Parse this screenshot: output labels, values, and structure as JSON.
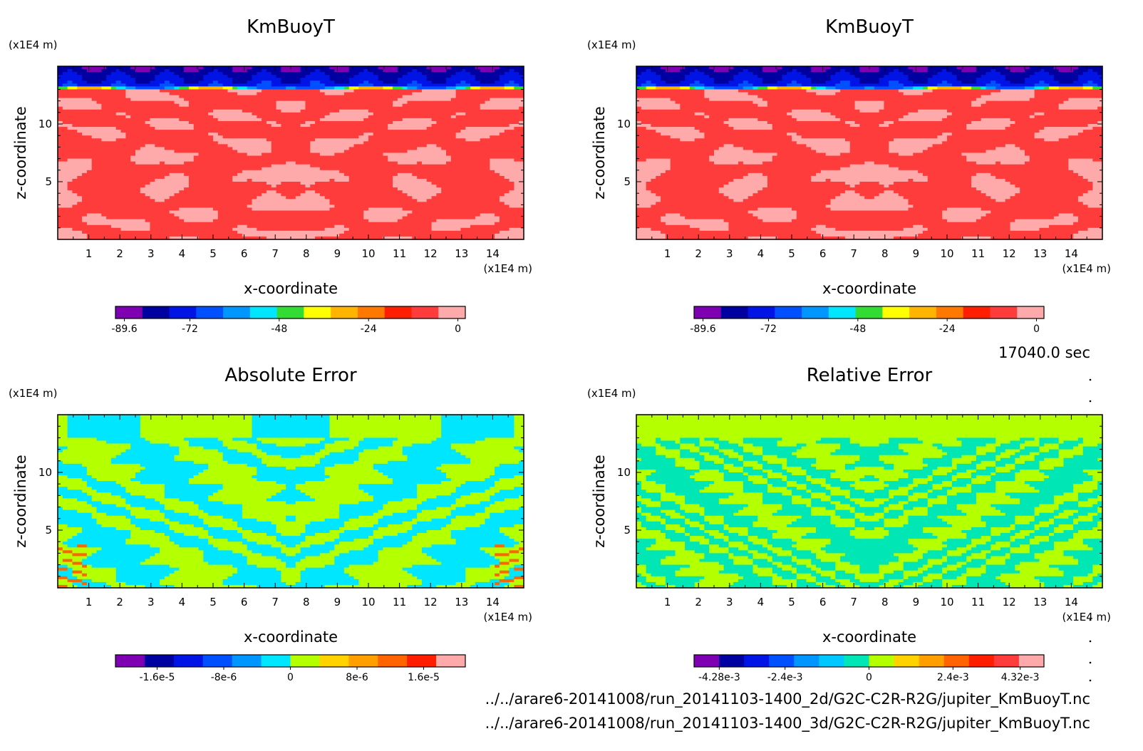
{
  "time_label": "17040.0 sec",
  "file_paths": [
    "../../arare6-20141008/run_20141103-1400_2d/G2C-C2R-R2G/jupiter_KmBuoyT.nc",
    "../../arare6-20141008/run_20141103-1400_3d/G2C-C2R-R2G/jupiter_KmBuoyT.nc"
  ],
  "chart_data": [
    {
      "type": "heatmap",
      "title": "KmBuoyT",
      "xlabel": "x-coordinate",
      "ylabel": "z-coordinate",
      "x_unit": "(x1E4 m)",
      "y_unit": "(x1E4 m)",
      "xlim": [
        0,
        15
      ],
      "ylim": [
        0,
        15
      ],
      "x_ticks": [
        "1",
        "2",
        "3",
        "4",
        "5",
        "6",
        "7",
        "8",
        "9",
        "10",
        "11",
        "12",
        "13",
        "14"
      ],
      "y_ticks": [
        "5",
        "10"
      ],
      "colorbar": {
        "colors": [
          "#7f00b2",
          "#0000a0",
          "#0014e6",
          "#0050ff",
          "#0096ff",
          "#00e6ff",
          "#32dc32",
          "#ffff00",
          "#ffb400",
          "#ff7800",
          "#ff1e00",
          "#ff3c3c",
          "#ffaaaa"
        ],
        "tick_labels": [
          "-89.6",
          "-72",
          "-48",
          "-24",
          "0"
        ],
        "tick_values": [
          -89.6,
          -72,
          -48,
          -24,
          0
        ],
        "range": [
          -92,
          2
        ]
      },
      "field": "kmbuoy"
    },
    {
      "type": "heatmap",
      "title": "KmBuoyT",
      "xlabel": "x-coordinate",
      "ylabel": "z-coordinate",
      "x_unit": "(x1E4 m)",
      "y_unit": "(x1E4 m)",
      "xlim": [
        0,
        15
      ],
      "ylim": [
        0,
        15
      ],
      "x_ticks": [
        "1",
        "2",
        "3",
        "4",
        "5",
        "6",
        "7",
        "8",
        "9",
        "10",
        "11",
        "12",
        "13",
        "14"
      ],
      "y_ticks": [
        "5",
        "10"
      ],
      "colorbar": {
        "colors": [
          "#7f00b2",
          "#0000a0",
          "#0014e6",
          "#0050ff",
          "#0096ff",
          "#00e6ff",
          "#32dc32",
          "#ffff00",
          "#ffb400",
          "#ff7800",
          "#ff1e00",
          "#ff3c3c",
          "#ffaaaa"
        ],
        "tick_labels": [
          "-89.6",
          "-72",
          "-48",
          "-24",
          "0"
        ],
        "tick_values": [
          -89.6,
          -72,
          -48,
          -24,
          0
        ],
        "range": [
          -92,
          2
        ]
      },
      "field": "kmbuoy"
    },
    {
      "type": "heatmap",
      "title": "Absolute Error",
      "xlabel": "x-coordinate",
      "ylabel": "z-coordinate",
      "x_unit": "(x1E4 m)",
      "y_unit": "(x1E4 m)",
      "xlim": [
        0,
        15
      ],
      "ylim": [
        0,
        15
      ],
      "x_ticks": [
        "1",
        "2",
        "3",
        "4",
        "5",
        "6",
        "7",
        "8",
        "9",
        "10",
        "11",
        "12",
        "13",
        "14"
      ],
      "y_ticks": [
        "5",
        "10"
      ],
      "colorbar": {
        "colors": [
          "#7f00b2",
          "#0000a0",
          "#0014e6",
          "#0050ff",
          "#0096ff",
          "#00e6ff",
          "#b4ff00",
          "#ffd200",
          "#ffa000",
          "#ff6400",
          "#ff1e00",
          "#ffaaaa"
        ],
        "tick_labels": [
          "-1.6e-5",
          "-8e-6",
          "0",
          "8e-6",
          "1.6e-5"
        ],
        "tick_values": [
          -1.6e-05,
          -8e-06,
          0,
          8e-06,
          1.6e-05
        ],
        "range": [
          -2.1e-05,
          2.1e-05
        ]
      },
      "field": "abserr"
    },
    {
      "type": "heatmap",
      "title": "Relative Error",
      "xlabel": "x-coordinate",
      "ylabel": "z-coordinate",
      "x_unit": "(x1E4 m)",
      "y_unit": "(x1E4 m)",
      "xlim": [
        0,
        15
      ],
      "ylim": [
        0,
        15
      ],
      "x_ticks": [
        "1",
        "2",
        "3",
        "4",
        "5",
        "6",
        "7",
        "8",
        "9",
        "10",
        "11",
        "12",
        "13",
        "14"
      ],
      "y_ticks": [
        "5",
        "10"
      ],
      "colorbar": {
        "colors": [
          "#7f00b2",
          "#0000a0",
          "#0014e6",
          "#0050ff",
          "#0096ff",
          "#00c8ff",
          "#00e6b4",
          "#b4ff00",
          "#ffd200",
          "#ffa000",
          "#ff6400",
          "#ff1e00",
          "#ff3c3c",
          "#ffaaaa"
        ],
        "tick_labels": [
          "-4.28e-3",
          "-2.4e-3",
          "0",
          "2.4e-3",
          "4.32e-3"
        ],
        "tick_values": [
          -0.00428,
          -0.0024,
          0,
          0.0024,
          0.00432
        ],
        "range": [
          -0.005,
          0.005
        ]
      },
      "field": "relerr"
    }
  ]
}
